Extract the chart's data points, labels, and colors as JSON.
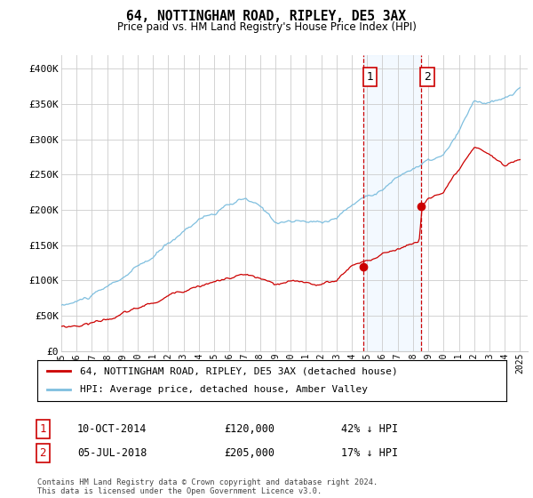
{
  "title": "64, NOTTINGHAM ROAD, RIPLEY, DE5 3AX",
  "subtitle": "Price paid vs. HM Land Registry's House Price Index (HPI)",
  "background_color": "#ffffff",
  "plot_bg_color": "#ffffff",
  "grid_color": "#cccccc",
  "xmin": 1995.0,
  "xmax": 2025.5,
  "ymin": 0,
  "ymax": 420000,
  "yticks": [
    0,
    50000,
    100000,
    150000,
    200000,
    250000,
    300000,
    350000,
    400000
  ],
  "ytick_labels": [
    "£0",
    "£50K",
    "£100K",
    "£150K",
    "£200K",
    "£250K",
    "£300K",
    "£350K",
    "£400K"
  ],
  "xticks": [
    1995,
    1996,
    1997,
    1998,
    1999,
    2000,
    2001,
    2002,
    2003,
    2004,
    2005,
    2006,
    2007,
    2008,
    2009,
    2010,
    2011,
    2012,
    2013,
    2014,
    2015,
    2016,
    2017,
    2018,
    2019,
    2020,
    2021,
    2022,
    2023,
    2024,
    2025
  ],
  "hpi_color": "#7fbfdf",
  "price_color": "#cc0000",
  "vline_color": "#cc0000",
  "shade_color": "#ddeeff",
  "sale1_x": 2014.77,
  "sale1_y": 120000,
  "sale2_x": 2018.5,
  "sale2_y": 205000,
  "sale1_label": "1",
  "sale2_label": "2",
  "legend_entry1": "64, NOTTINGHAM ROAD, RIPLEY, DE5 3AX (detached house)",
  "legend_entry2": "HPI: Average price, detached house, Amber Valley",
  "annotation1_date": "10-OCT-2014",
  "annotation1_price": "£120,000",
  "annotation1_hpi": "42% ↓ HPI",
  "annotation2_date": "05-JUL-2018",
  "annotation2_price": "£205,000",
  "annotation2_hpi": "17% ↓ HPI",
  "footer": "Contains HM Land Registry data © Crown copyright and database right 2024.\nThis data is licensed under the Open Government Licence v3.0."
}
